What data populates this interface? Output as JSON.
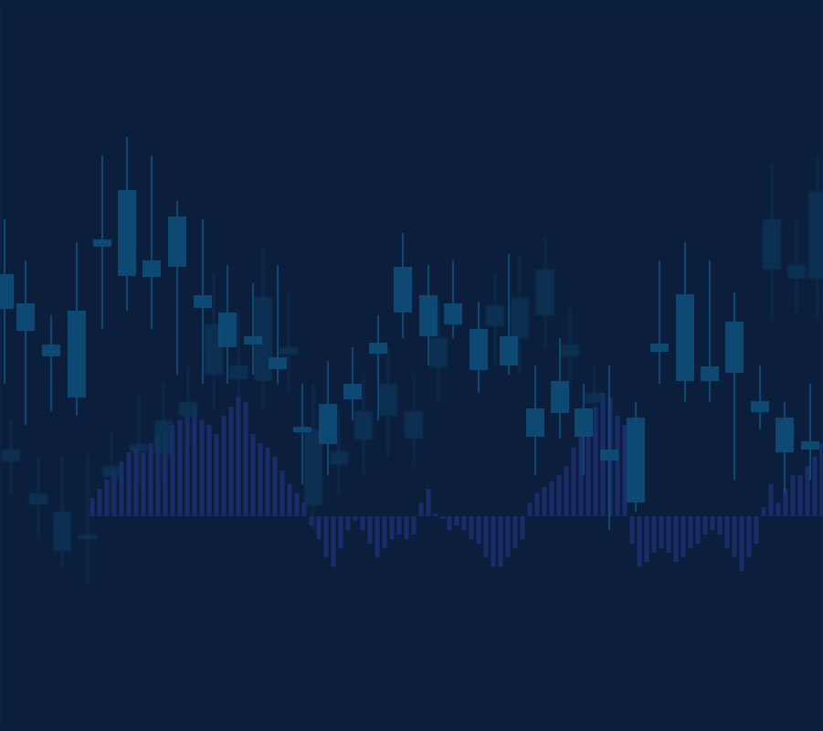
{
  "chart_data": [
    {
      "type": "bar",
      "tick_labels": false,
      "color": "#1d2f70",
      "xlim": [
        0,
        901
      ],
      "ylim": [
        -235,
        565
      ],
      "x": [
        101,
        109,
        117,
        125,
        133,
        141,
        149,
        157,
        165,
        173,
        181,
        189,
        197,
        205,
        213,
        221,
        229,
        237,
        245,
        253,
        261,
        269,
        277,
        285,
        293,
        301,
        309,
        317,
        325,
        333,
        341,
        349,
        357,
        365,
        373,
        381,
        389,
        397,
        405,
        413,
        421,
        429,
        437,
        445,
        453,
        461,
        469,
        477,
        485,
        492,
        500,
        508,
        516,
        524,
        532,
        540,
        548,
        556,
        564,
        572,
        580,
        588,
        596,
        604,
        612,
        620,
        628,
        636,
        644,
        652,
        660,
        668,
        676,
        684,
        692,
        700,
        708,
        716,
        724,
        732,
        740,
        748,
        756,
        764,
        772,
        780,
        788,
        796,
        804,
        812,
        820,
        828,
        836,
        844,
        852,
        860,
        868,
        876,
        884,
        892,
        900
      ],
      "values": [
        20,
        30,
        40,
        50,
        60,
        70,
        75,
        70,
        80,
        90,
        95,
        100,
        105,
        110,
        120,
        105,
        100,
        90,
        110,
        120,
        130,
        125,
        90,
        80,
        75,
        65,
        50,
        35,
        25,
        15,
        -10,
        -25,
        -45,
        -55,
        -35,
        -15,
        -5,
        -15,
        -30,
        -45,
        -35,
        -25,
        -20,
        -25,
        -20,
        15,
        30,
        3,
        -3,
        -15,
        -10,
        -15,
        -25,
        -30,
        -45,
        -55,
        -55,
        -45,
        -35,
        -25,
        15,
        25,
        32,
        38,
        45,
        55,
        75,
        90,
        110,
        120,
        135,
        130,
        110,
        100,
        -30,
        -55,
        -50,
        -40,
        -35,
        -40,
        -50,
        -45,
        -35,
        -30,
        -20,
        -15,
        -20,
        -35,
        -45,
        -60,
        -45,
        -30,
        10,
        35,
        15,
        30,
        45,
        45,
        55,
        65,
        80
      ]
    },
    {
      "type": "candlestick",
      "tick_labels": false,
      "xlim": [
        0,
        901
      ],
      "ylim": [
        0,
        800
      ],
      "series": [
        {
          "color": "#0d3557",
          "x": [
            12,
            42,
            68,
            96,
            122,
            152,
            179,
            206,
            234,
            261,
            288,
            316,
            343,
            371,
            398,
            425,
            453,
            480,
            542,
            569,
            597,
            624,
            651,
            845,
            872,
            895
          ],
          "open": [
            295,
            248,
            197,
            210,
            278,
            306,
            303,
            345,
            390,
            385,
            383,
            412,
            247,
            292,
            319,
            345,
            320,
            398,
            443,
            430,
            455,
            410,
            359,
            505,
            495,
            495
          ],
          "high": [
            340,
            300,
            300,
            300,
            330,
            370,
            380,
            400,
            500,
            460,
            530,
            480,
            380,
            350,
            390,
            420,
            390,
            470,
            500,
            520,
            540,
            460,
            400,
            620,
            560,
            630
          ],
          "low": [
            260,
            210,
            180,
            160,
            240,
            270,
            270,
            310,
            350,
            340,
            350,
            370,
            220,
            260,
            280,
            300,
            290,
            360,
            400,
            390,
            420,
            380,
            330,
            450,
            460,
            450
          ],
          "close": [
            308,
            260,
            240,
            215,
            290,
            314,
            340,
            360,
            445,
            400,
            475,
            420,
            330,
            306,
            350,
            380,
            350,
            430,
            466,
            474,
            505,
            423,
            370,
            560,
            510,
            590
          ]
        },
        {
          "color": "#0f4e79",
          "x": [
            5,
            28,
            56,
            84,
            112,
            139,
            166,
            194,
            222,
            249,
            277,
            304,
            331,
            359,
            386,
            414,
            441,
            469,
            496,
            524,
            557,
            586,
            613,
            639,
            667,
            696,
            722,
            750,
            777,
            804,
            832,
            859,
            887
          ],
          "open": [
            462,
            438,
            410,
            365,
            530,
            498,
            497,
            508,
            463,
            420,
            423,
            396,
            327,
            314,
            363,
            413,
            458,
            432,
            445,
            395,
            400,
            322,
            348,
            322,
            296,
            250,
            415,
            383,
            383,
            392,
            349,
            305,
            308
          ],
          "high": [
            560,
            515,
            455,
            535,
            630,
            650,
            630,
            580,
            560,
            510,
            490,
            510,
            380,
            405,
            420,
            455,
            545,
            510,
            515,
            470,
            522,
            400,
            430,
            380,
            400,
            360,
            515,
            535,
            515,
            480,
            400,
            360,
            380
          ],
          "low": [
            380,
            335,
            350,
            345,
            440,
            460,
            440,
            390,
            380,
            380,
            390,
            380,
            270,
            280,
            340,
            340,
            430,
            400,
            430,
            370,
            390,
            280,
            320,
            280,
            220,
            240,
            380,
            360,
            360,
            275,
            330,
            260,
            275
          ],
          "close": [
            500,
            468,
            423,
            460,
            538,
            592,
            515,
            563,
            477,
            458,
            432,
            409,
            333,
            358,
            380,
            425,
            508,
            477,
            468,
            440,
            432,
            353,
            383,
            353,
            308,
            343,
            424,
            478,
            399,
            448,
            361,
            343,
            317
          ]
        }
      ]
    }
  ]
}
